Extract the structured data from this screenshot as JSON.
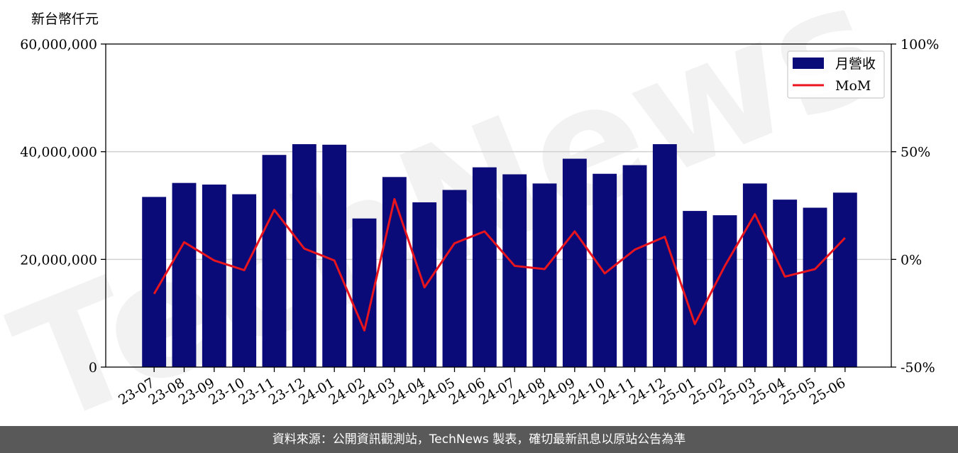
{
  "chart_data": {
    "type": "bar",
    "unit_label": "新台幣仟元",
    "categories": [
      "23-07",
      "23-08",
      "23-09",
      "23-10",
      "23-11",
      "23-12",
      "24-01",
      "24-02",
      "24-03",
      "24-04",
      "24-05",
      "24-06",
      "24-07",
      "24-08",
      "24-09",
      "24-10",
      "24-11",
      "24-12",
      "25-01",
      "25-02",
      "25-03",
      "25-04",
      "25-05",
      "25-06"
    ],
    "series": [
      {
        "name": "月營收",
        "type": "bar",
        "axis": "left",
        "color": "#0a0a78",
        "values": [
          31600000,
          34200000,
          33900000,
          32100000,
          39400000,
          41400000,
          41300000,
          27600000,
          35300000,
          30600000,
          32900000,
          37100000,
          35800000,
          34100000,
          38700000,
          35900000,
          37500000,
          41400000,
          29000000,
          28200000,
          34100000,
          31100000,
          29600000,
          32400000
        ]
      },
      {
        "name": "MoM",
        "type": "line",
        "axis": "right",
        "color": "#e8141e",
        "values": [
          -16,
          8,
          -0.5,
          -5,
          23,
          5,
          -0.5,
          -33,
          28,
          -13,
          7.5,
          13,
          -3,
          -4.5,
          13,
          -6.5,
          4.5,
          10.5,
          -30,
          -3,
          21,
          -8,
          -4.5,
          10
        ]
      }
    ],
    "y_left": {
      "range": [
        0,
        60000000
      ],
      "ticks": [
        0,
        20000000,
        40000000,
        60000000
      ],
      "tick_labels": [
        "0",
        "20,000,000",
        "40,000,000",
        "60,000,000"
      ]
    },
    "y_right": {
      "range": [
        -50,
        100
      ],
      "ticks": [
        -50,
        0,
        50,
        100
      ],
      "tick_labels": [
        "-50%",
        "0%",
        "50%",
        "100%"
      ]
    },
    "grid": "horizontal",
    "legend_position": "top-right"
  },
  "watermark": "TechNews",
  "footer": {
    "text": "資料來源：公開資訊觀測站，TechNews 製表，確切最新訊息以原站公告為準"
  }
}
